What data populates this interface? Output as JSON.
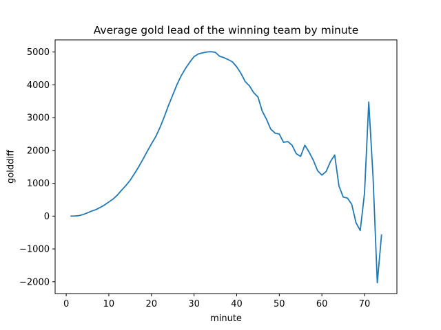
{
  "chart_data": {
    "type": "line",
    "title": "Average gold lead of the winning team by minute",
    "xlabel": "minute",
    "ylabel": "golddiff",
    "xlim": [
      -2.6,
      77.6
    ],
    "ylim": [
      -2360,
      5370
    ],
    "xticks": [
      0,
      10,
      20,
      30,
      40,
      50,
      60,
      70
    ],
    "yticks": [
      -2000,
      -1000,
      0,
      1000,
      2000,
      3000,
      4000,
      5000
    ],
    "grid": false,
    "legend": "none",
    "series": [
      {
        "color": "#1f77b4",
        "x": [
          1,
          2,
          3,
          4,
          5,
          6,
          7,
          8,
          9,
          10,
          11,
          12,
          13,
          14,
          15,
          16,
          17,
          18,
          19,
          20,
          21,
          22,
          23,
          24,
          25,
          26,
          27,
          28,
          29,
          30,
          31,
          32,
          33,
          34,
          35,
          36,
          37,
          38,
          39,
          40,
          41,
          42,
          43,
          44,
          45,
          46,
          47,
          48,
          49,
          50,
          51,
          52,
          53,
          54,
          55,
          56,
          57,
          58,
          59,
          60,
          61,
          62,
          63,
          64,
          65,
          66,
          67,
          68,
          69,
          70,
          71,
          72,
          73,
          74
        ],
        "y": [
          0,
          5,
          15,
          50,
          100,
          155,
          200,
          265,
          340,
          430,
          520,
          640,
          790,
          930,
          1090,
          1290,
          1500,
          1730,
          1970,
          2200,
          2420,
          2700,
          3020,
          3370,
          3690,
          4010,
          4280,
          4500,
          4690,
          4860,
          4940,
          4975,
          5000,
          5010,
          4990,
          4870,
          4830,
          4770,
          4700,
          4550,
          4350,
          4100,
          3970,
          3760,
          3630,
          3200,
          2950,
          2650,
          2530,
          2500,
          2250,
          2270,
          2160,
          1900,
          1820,
          2160,
          1950,
          1700,
          1380,
          1250,
          1360,
          1660,
          1860,
          920,
          580,
          550,
          360,
          -200,
          -440,
          700,
          3480,
          1200,
          -2030,
          -560
        ]
      }
    ]
  }
}
